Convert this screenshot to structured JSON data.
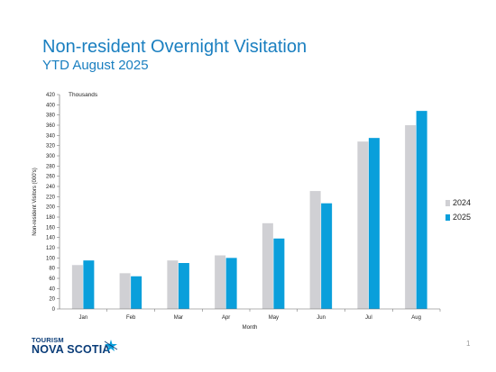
{
  "slide": {
    "title": "Non-resident Overnight Visitation",
    "subtitle": "YTD August 2025",
    "page_number": "1"
  },
  "logo": {
    "line1": "TOURISM",
    "line2": "NOVA SCOTIA"
  },
  "colors": {
    "title": "#1a7fc0",
    "series_2024": "#d0d0d4",
    "series_2025": "#0a9fdb"
  },
  "chart_data": {
    "type": "bar",
    "title": "",
    "xlabel": "Month",
    "ylabel": "Non-resident Visitors (000's)",
    "unit_label": "Thousands",
    "categories": [
      "Jan",
      "Feb",
      "Mar",
      "Apr",
      "May",
      "Jun",
      "Jul",
      "Aug"
    ],
    "series": [
      {
        "name": "2024",
        "values": [
          86,
          70,
          95,
          105,
          168,
          231,
          328,
          360
        ]
      },
      {
        "name": "2025",
        "values": [
          95,
          64,
          90,
          100,
          138,
          207,
          335,
          388
        ]
      }
    ],
    "ylim": [
      0,
      420
    ],
    "yticks": [
      0,
      20,
      40,
      60,
      80,
      100,
      120,
      140,
      160,
      180,
      200,
      220,
      240,
      260,
      280,
      300,
      320,
      340,
      360,
      380,
      400,
      420
    ],
    "grid": false,
    "legend_position": "right"
  }
}
